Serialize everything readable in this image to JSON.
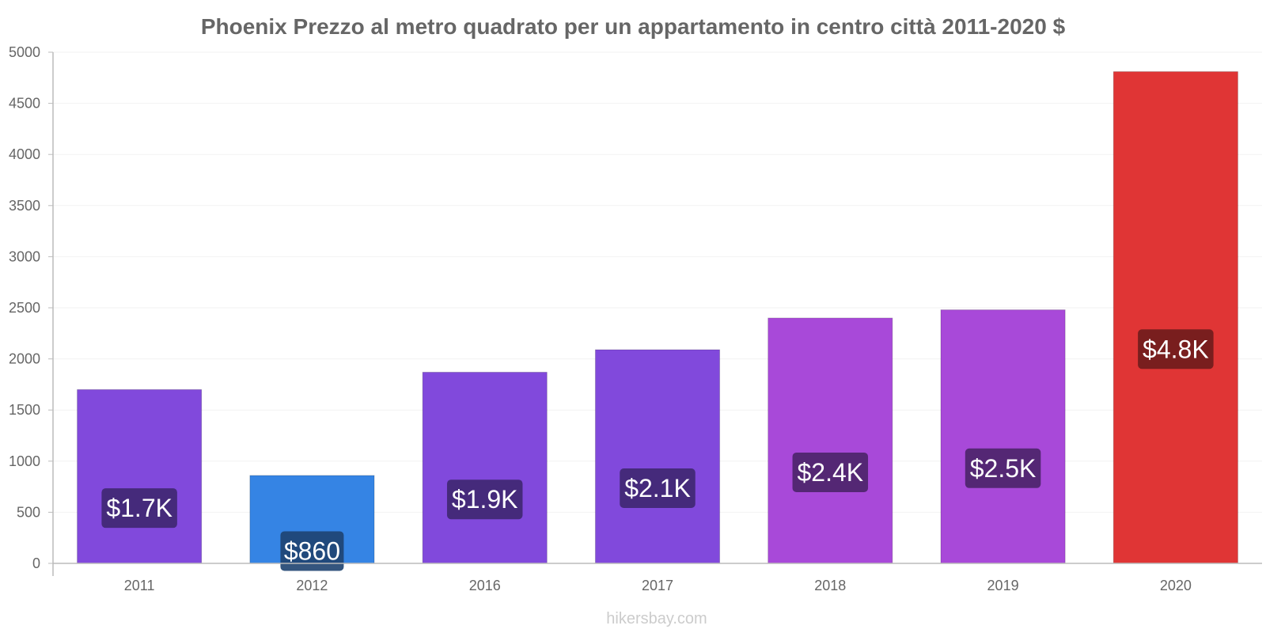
{
  "chart_data": {
    "type": "bar",
    "title": "Phoenix Prezzo al metro quadrato per un appartamento in centro città 2011-2020 $",
    "categories": [
      "2011",
      "2012",
      "2016",
      "2017",
      "2018",
      "2019",
      "2020"
    ],
    "values": [
      1700,
      860,
      1870,
      2090,
      2400,
      2480,
      4810
    ],
    "value_labels": [
      "$1.7K",
      "$860",
      "$1.9K",
      "$2.1K",
      "$2.4K",
      "$2.5K",
      "$4.8K"
    ],
    "bar_colors": [
      "#8149dc",
      "#3584e4",
      "#8149dc",
      "#8149dc",
      "#a849d9",
      "#a849d9",
      "#e03535"
    ],
    "label_bg_colors": [
      "#3e2770",
      "#1e4370",
      "#3e2770",
      "#3e2770",
      "#4a2468",
      "#4a2468",
      "#6e1c1c"
    ],
    "ylim": [
      0,
      5000
    ],
    "yticks": [
      "0",
      "500",
      "1000",
      "1500",
      "2000",
      "2500",
      "3000",
      "3500",
      "4000",
      "4500",
      "5000"
    ],
    "xlabel": "",
    "ylabel": "",
    "grid": true,
    "footer": "hikersbay.com"
  }
}
